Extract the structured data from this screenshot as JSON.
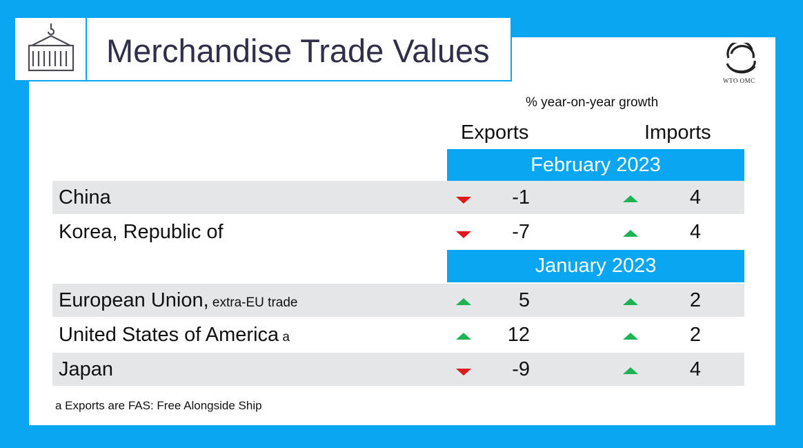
{
  "title": "Merchandise Trade Values",
  "logo_text": "WTO OMC",
  "subtitle": "% year-on-year growth",
  "col_exports": "Exports",
  "col_imports": "Imports",
  "colors": {
    "accent": "#0aa6f2",
    "up": "#1db354",
    "down": "#e0191c",
    "row_shade": "#e4e6e7"
  },
  "chart_data": {
    "type": "table",
    "columns": [
      "Exports",
      "Imports"
    ],
    "groups": [
      {
        "period": "February 2023",
        "rows": [
          {
            "country": "China",
            "note": "",
            "exports": -1,
            "imports": 4,
            "exports_dir": "down",
            "imports_dir": "up"
          },
          {
            "country": "Korea, Republic of",
            "note": "",
            "exports": -7,
            "imports": 4,
            "exports_dir": "down",
            "imports_dir": "up"
          }
        ]
      },
      {
        "period": "January 2023",
        "rows": [
          {
            "country": "European Union,",
            "note": "extra-EU  trade",
            "exports": 5,
            "imports": 2,
            "exports_dir": "up",
            "imports_dir": "up"
          },
          {
            "country": "United States of America",
            "note": "a",
            "exports": 12,
            "imports": 2,
            "exports_dir": "up",
            "imports_dir": "up"
          },
          {
            "country": "Japan",
            "note": "",
            "exports": -9,
            "imports": 4,
            "exports_dir": "down",
            "imports_dir": "up"
          }
        ]
      }
    ]
  },
  "footnote": "a  Exports are FAS: Free Alongside Ship"
}
